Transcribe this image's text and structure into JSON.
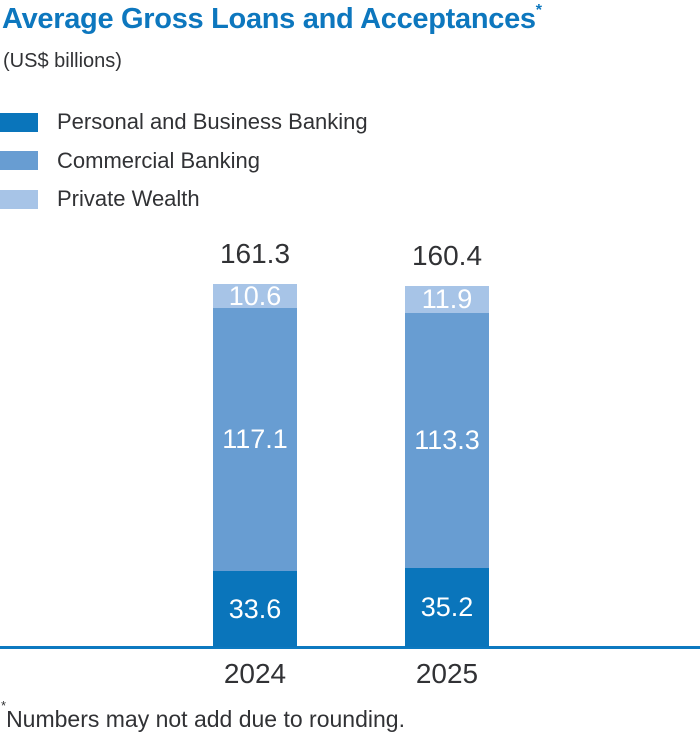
{
  "colors": {
    "brand_blue": "#0d77be",
    "text": "#313235",
    "value_label": "#ffffff"
  },
  "header": {
    "title": "Average Gross Loans and Acceptances",
    "footnote_marker": "*",
    "units": "(US$ billions)"
  },
  "chart_data": {
    "type": "bar",
    "stacked": true,
    "title": "Average Gross Loans and Acceptances",
    "subtitle": "(US$ billions)",
    "categories": [
      "2024",
      "2025"
    ],
    "series": [
      {
        "name": "Personal and Business Banking",
        "color": "#0a75bb",
        "values": [
          33.6,
          35.2
        ]
      },
      {
        "name": "Commercial Banking",
        "color": "#689dd2",
        "values": [
          117.1,
          113.3
        ]
      },
      {
        "name": "Private Wealth",
        "color": "#a7c4e7",
        "values": [
          10.6,
          11.9
        ]
      }
    ],
    "totals": [
      161.3,
      160.4
    ],
    "value_labels": "inside-segments, white",
    "total_labels": "above bars",
    "axis_line_color": "#0d79c0",
    "grid": false,
    "legend_position": "top-left",
    "xlabel": "",
    "ylabel": ""
  },
  "footnote": {
    "marker": "*",
    "text": "Numbers may not add due to rounding."
  }
}
